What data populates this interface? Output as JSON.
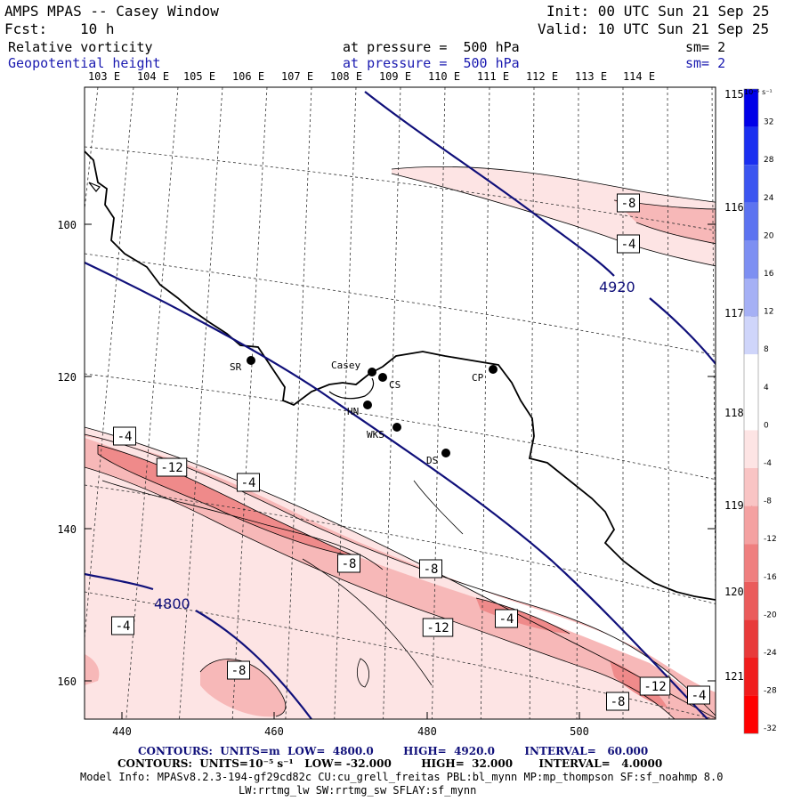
{
  "header": {
    "title": "AMPS MPAS -- Casey Window",
    "init": "Init: 00 UTC Sun 21 Sep 25",
    "fcst_label": "Fcst:",
    "fcst_value": "10 h",
    "valid": "Valid: 10 UTC Sun 21 Sep 25",
    "field1_name": "Relative vorticity",
    "field1_level": "at pressure =  500 hPa",
    "field1_sm": "sm= 2",
    "field2_name": "Geopotential height",
    "field2_level": "at pressure =  500 hPa",
    "field2_sm": "sm= 2"
  },
  "map": {
    "top_lon_labels": [
      "103 E",
      "104 E",
      "105 E",
      "106 E",
      "107 E",
      "108 E",
      "109 E",
      "110 E",
      "111 E",
      "112 E",
      "113 E",
      "114 E"
    ],
    "right_lon_labels": [
      "115 E",
      "116 E",
      "117 E",
      "118 E",
      "119 E",
      "120 E",
      "121 E"
    ],
    "x_axis_ticks": [
      "440",
      "460",
      "480",
      "500"
    ],
    "y_axis_ticks": [
      "100",
      "120",
      "140",
      "160"
    ],
    "stations": [
      {
        "label": "SR"
      },
      {
        "label": "Casey"
      },
      {
        "label": "CS"
      },
      {
        "label": "HN"
      },
      {
        "label": "WKS"
      },
      {
        "label": "DS"
      },
      {
        "label": "CP"
      }
    ],
    "height_contour_labels": [
      "4920",
      "4800"
    ],
    "vorticity_contour_labels": [
      "-8",
      "-4",
      "-4",
      "-12",
      "-4",
      "-8",
      "-8",
      "-4",
      "-12",
      "-4",
      "-8",
      "-12",
      "-8",
      "-4"
    ]
  },
  "colorbar": {
    "unit_label": "10⁻⁵ s⁻¹",
    "tick_labels": [
      "32",
      "28",
      "24",
      "20",
      "16",
      "12",
      "8",
      "4",
      "0",
      "-4",
      "-8",
      "-12",
      "-16",
      "-20",
      "-24",
      "-28",
      "-32"
    ],
    "colors": [
      "#0000e8",
      "#1a2ff0",
      "#3b55f0",
      "#5c73f0",
      "#7d8ff2",
      "#a5b0f5",
      "#cfd5fa",
      "#ffffff",
      "#ffffff",
      "#fde4e4",
      "#f9c4c4",
      "#f4a1a1",
      "#ef7f7f",
      "#ea5b5b",
      "#e83a3a",
      "#f01c1c",
      "#ff0000"
    ]
  },
  "footer": {
    "contours1": "CONTOURS:  UNITS=m  LOW=  4800.0        HIGH=  4920.0        INTERVAL=   60.000",
    "contours2": "CONTOURS:  UNITS=10⁻⁵ s⁻¹   LOW= -32.000        HIGH=  32.000       INTERVAL=   4.0000",
    "model_info": "Model Info: MPASv8.2.3-194-gf29cd82c CU:cu_grell_freitas PBL:bl_mynn MP:mp_thompson SF:sf_noahmp 8.0",
    "model_info2": "LW:rrtmg_lw SW:rrtmg_sw SFLAY:sf_mynn"
  },
  "colors": {
    "height_contour": "#10107a",
    "light_pink": "#fde4e4",
    "mid_pink": "#f7b8b8",
    "dark_pink": "#ef8a8a"
  }
}
